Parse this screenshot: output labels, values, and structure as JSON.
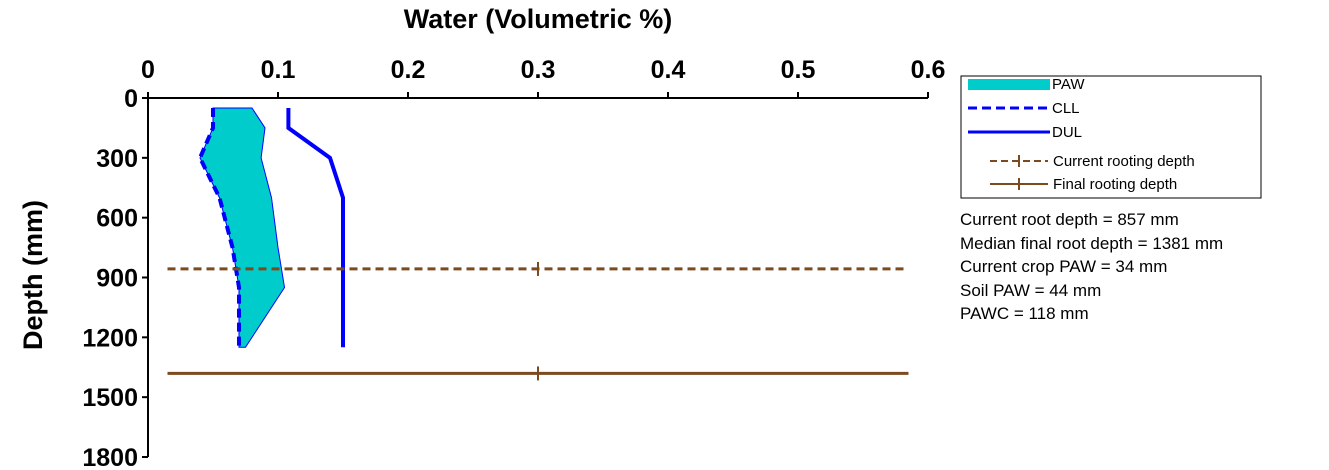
{
  "chart_data": {
    "type": "line",
    "xlabel": "Water (Volumetric %)",
    "ylabel": "Depth (mm)",
    "xlim": [
      0,
      0.6
    ],
    "ylim": [
      1800,
      0
    ],
    "x_axis_position": "top",
    "x_ticks": [
      "0",
      "0.1",
      "0.2",
      "0.3",
      "0.4",
      "0.5",
      "0.6"
    ],
    "y_ticks": [
      "0",
      "300",
      "600",
      "900",
      "1200",
      "1500",
      "1800"
    ],
    "grid": false,
    "legend_position": "right",
    "series": [
      {
        "name": "PAW",
        "style": "area",
        "color": "#00CCCC",
        "lower_x": [
          0.05,
          0.05,
          0.04,
          0.055,
          0.065,
          0.07,
          0.07
        ],
        "upper_x": [
          0.08,
          0.09,
          0.087,
          0.095,
          0.1,
          0.105,
          0.075
        ],
        "depth": [
          50,
          150,
          300,
          500,
          750,
          950,
          1250
        ]
      },
      {
        "name": "CLL",
        "style": "dashed",
        "color": "#0000FF",
        "x": [
          0.05,
          0.05,
          0.04,
          0.055,
          0.065,
          0.07,
          0.07
        ],
        "depth": [
          50,
          150,
          300,
          500,
          750,
          950,
          1250
        ]
      },
      {
        "name": "DUL",
        "style": "solid",
        "color": "#0000FF",
        "x": [
          0.108,
          0.108,
          0.14,
          0.15,
          0.15,
          0.15,
          0.15
        ],
        "depth": [
          50,
          150,
          300,
          500,
          750,
          950,
          1250
        ]
      },
      {
        "name": "Current rooting depth",
        "style": "dashed",
        "color": "#7B4A1E",
        "x": [
          0.015,
          0.585
        ],
        "depth": [
          857,
          857
        ],
        "marker_x": 0.3
      },
      {
        "name": "Final rooting depth",
        "style": "solid",
        "color": "#7B4A1E",
        "x": [
          0.015,
          0.585
        ],
        "depth": [
          1381,
          1381
        ],
        "marker_x": 0.3
      }
    ],
    "annotations": [
      "Current root depth = 857 mm",
      "Median final root depth = 1381 mm",
      "Current crop PAW = 34 mm",
      "Soil PAW = 44 mm",
      "PAWC = 118 mm"
    ]
  }
}
